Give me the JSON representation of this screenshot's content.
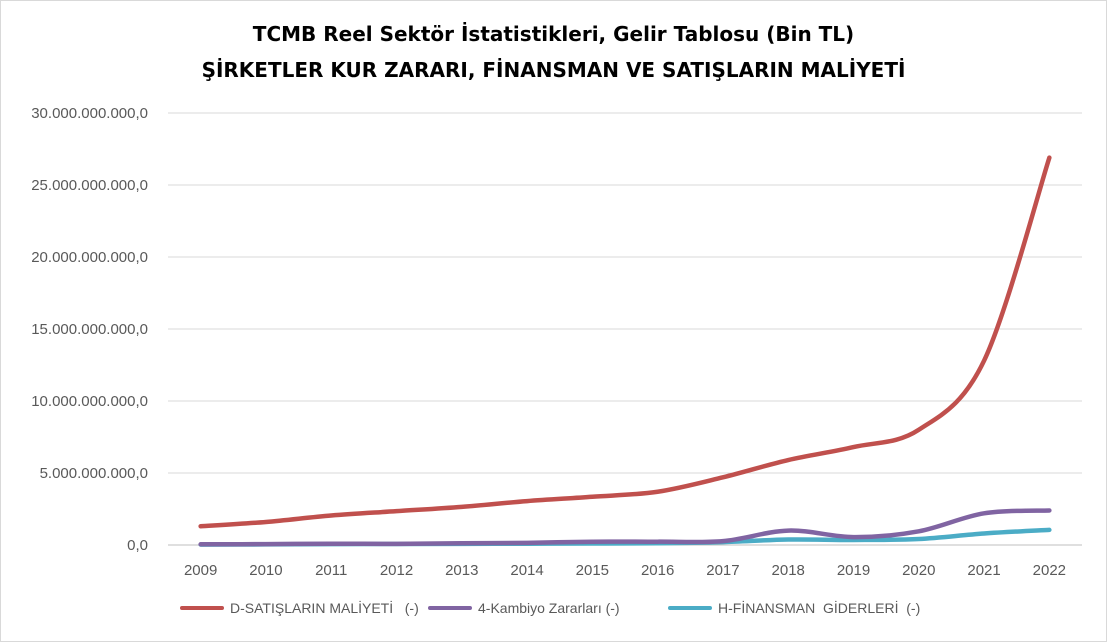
{
  "chart_data": {
    "type": "line",
    "title": "TCMB  Reel Sektör İstatistikleri, Gelir Tablosu (Bin TL)",
    "subtitle": "ŞİRKETLER KUR ZARARI, FİNANSMAN VE SATIŞLARIN MALİYETİ",
    "categories": [
      "2009",
      "2010",
      "2011",
      "2012",
      "2013",
      "2014",
      "2015",
      "2016",
      "2017",
      "2018",
      "2019",
      "2020",
      "2021",
      "2022"
    ],
    "y_ticks": [
      "0,0",
      "5.000.000.000,0",
      "10.000.000.000,0",
      "15.000.000.000,0",
      "20.000.000.000,0",
      "25.000.000.000,0",
      "30.000.000.000,0"
    ],
    "ylim": [
      0,
      30000000000
    ],
    "grid": true,
    "legend_position": "bottom",
    "series": [
      {
        "name": "D-SATIŞLARIN MALİYETİ   (-)",
        "color": "#c0504d",
        "values": [
          1300000000,
          1600000000,
          2050000000,
          2350000000,
          2650000000,
          3050000000,
          3350000000,
          3700000000,
          4700000000,
          5900000000,
          6800000000,
          8000000000,
          12800000000,
          26900000000
        ]
      },
      {
        "name": "4-Kambiyo Zararları (-)",
        "color": "#8064a2",
        "values": [
          50000000,
          60000000,
          90000000,
          80000000,
          120000000,
          150000000,
          230000000,
          230000000,
          270000000,
          1000000000,
          550000000,
          950000000,
          2200000000,
          2400000000
        ]
      },
      {
        "name": "H-FİNANSMAN  GİDERLERİ  (-)",
        "color": "#4bacc6",
        "values": [
          30000000,
          40000000,
          60000000,
          70000000,
          80000000,
          90000000,
          100000000,
          120000000,
          200000000,
          380000000,
          350000000,
          420000000,
          800000000,
          1050000000
        ]
      }
    ]
  }
}
